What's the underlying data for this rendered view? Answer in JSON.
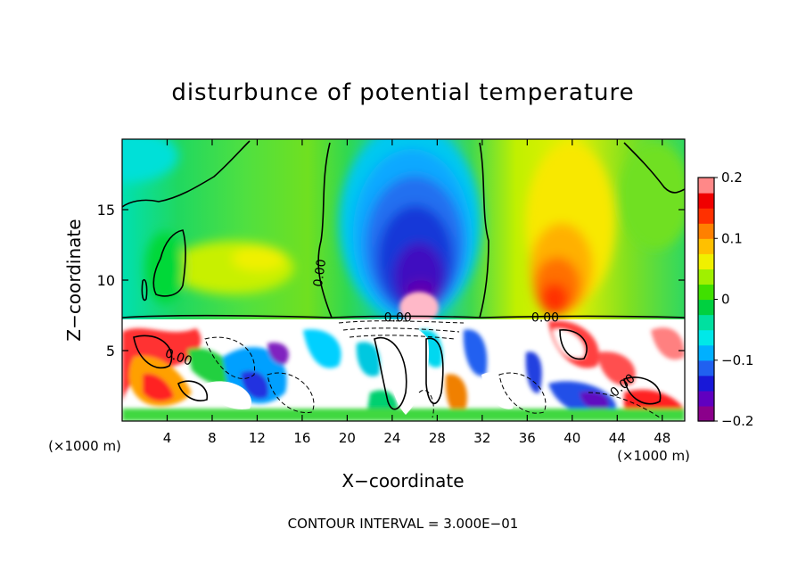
{
  "chart_data": {
    "type": "heatmap",
    "title": "disturbunce of potential temperature",
    "xlabel": "X−coordinate",
    "ylabel": "Z−coordinate",
    "x_unit_left": "(×1000 m)",
    "x_unit_right": "(×1000 m)",
    "footer": "CONTOUR INTERVAL = 3.000E−01",
    "xlim": [
      0,
      50
    ],
    "ylim": [
      0,
      20
    ],
    "x_ticks": [
      4,
      8,
      12,
      16,
      20,
      24,
      28,
      32,
      36,
      40,
      44,
      48
    ],
    "x_tick_labels": [
      "4",
      "8",
      "12",
      "16",
      "20",
      "24",
      "28",
      "32",
      "36",
      "40",
      "44",
      "48"
    ],
    "y_ticks": [
      5,
      10,
      15
    ],
    "y_tick_labels": [
      "5",
      "10",
      "15"
    ],
    "colorbar": {
      "range": [
        -0.2,
        0.2
      ],
      "ticks": [
        0.2,
        0.1,
        0,
        -0.1,
        -0.2
      ],
      "tick_labels": [
        "0.2",
        "0.1",
        "0",
        "−0.1",
        "−0.2"
      ],
      "colors": [
        "#8b008b",
        "#6000c0",
        "#1818d8",
        "#2060f0",
        "#00b0ff",
        "#00e8e8",
        "#00e0a0",
        "#00d040",
        "#40e000",
        "#a0f000",
        "#f0f000",
        "#ffc000",
        "#ff8000",
        "#ff3000",
        "#f00000",
        "#ff8888"
      ]
    },
    "contour_labels": [
      {
        "text": "0.00",
        "x": 17.6,
        "y": 10.5,
        "rotate": -82
      },
      {
        "text": "0.00",
        "x": 24.5,
        "y": 7.3,
        "rotate": 0
      },
      {
        "text": "0.00",
        "x": 37.6,
        "y": 7.3,
        "rotate": 0
      },
      {
        "text": "0.00",
        "x": 5.0,
        "y": 4.5,
        "rotate": 20
      },
      {
        "text": "0.00",
        "x": 44.5,
        "y": 2.5,
        "rotate": -40
      }
    ],
    "fields": {
      "upper_region_base_z": 7.3,
      "cold_core": {
        "x": 26.2,
        "z": 12.5,
        "value": -0.2
      },
      "warm_core": {
        "x": 38.5,
        "z": 9.0,
        "value": 0.15
      },
      "warm_band": {
        "x": 12.0,
        "z": 9.5,
        "value": 0.07
      },
      "cool_left_column": {
        "x": 3.0,
        "z": 10.5,
        "value": 0.0
      },
      "surface_layer": {
        "z_top": 7.3,
        "value_range": [
          -0.2,
          0.2
        ]
      }
    }
  }
}
